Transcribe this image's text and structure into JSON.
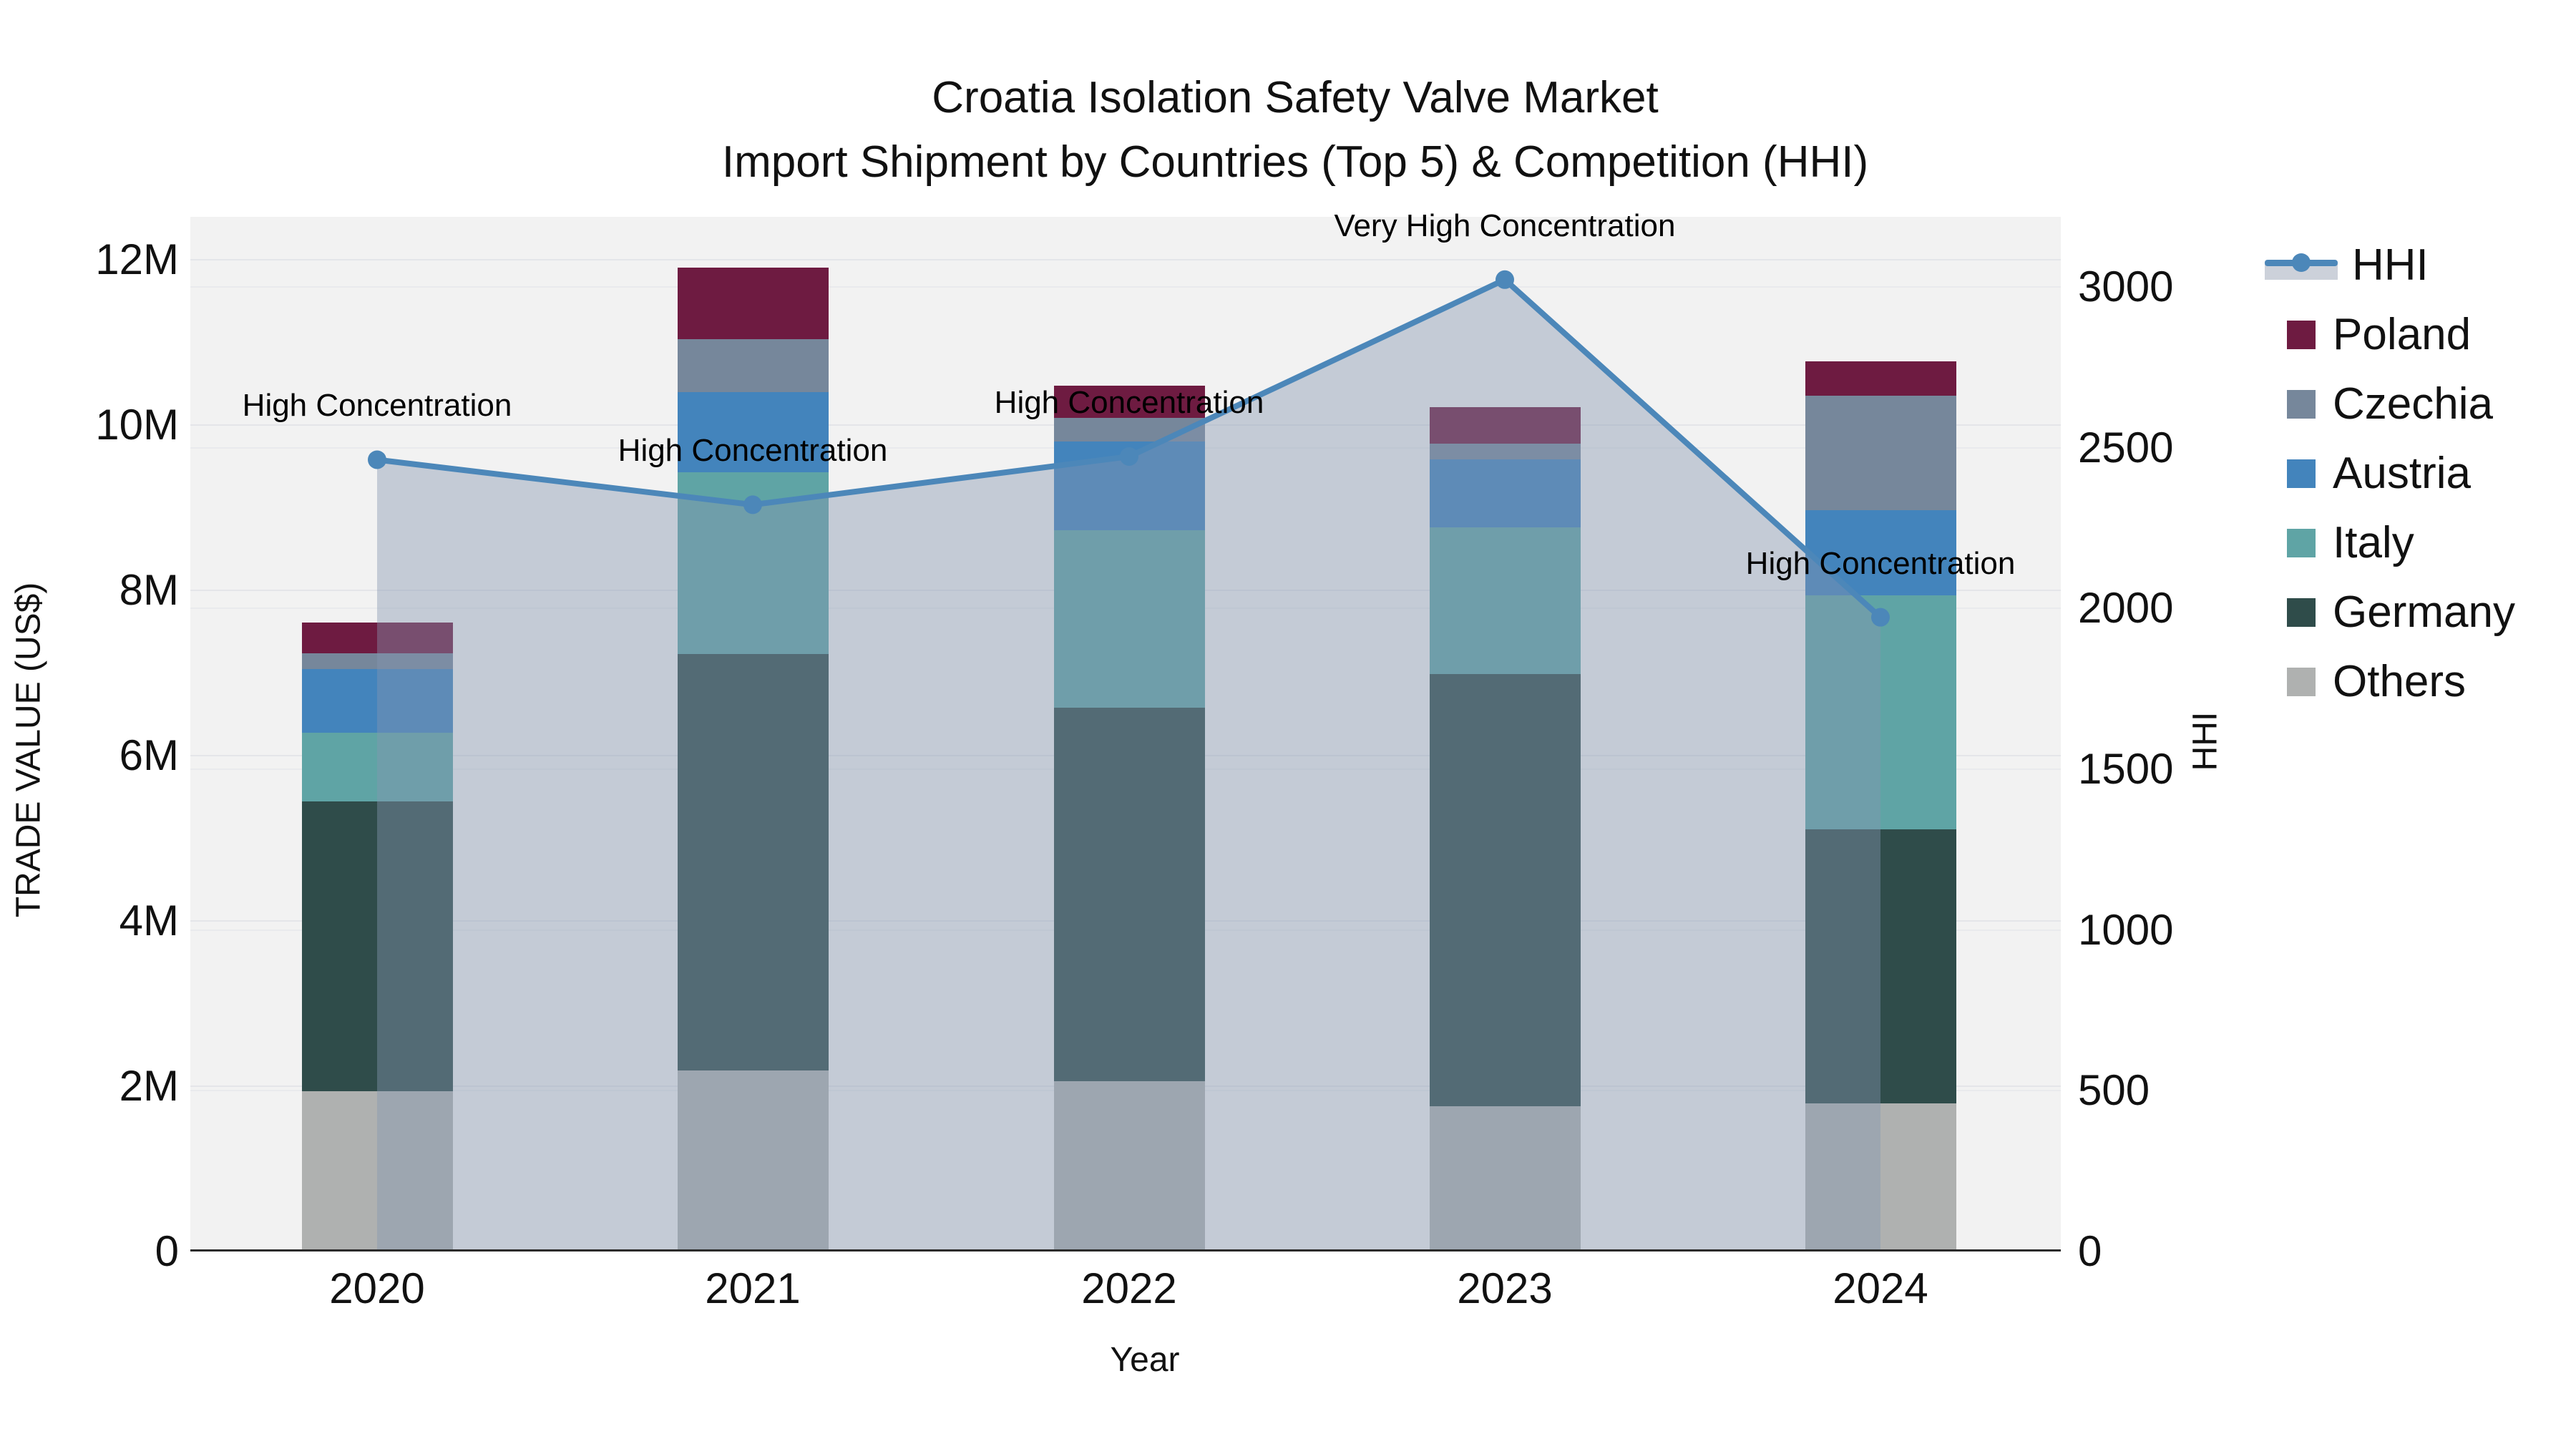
{
  "title": {
    "line1": "Croatia Isolation Safety Valve Market",
    "line2": "Import Shipment by Countries (Top 5) & Competition (HHI)"
  },
  "axes": {
    "x": {
      "title": "Year",
      "ticks": [
        "2020",
        "2021",
        "2022",
        "2023",
        "2024"
      ]
    },
    "y_left": {
      "title": "TRADE VALUE (US$)",
      "ticks": [
        "0",
        "2M",
        "4M",
        "6M",
        "8M",
        "10M",
        "12M"
      ]
    },
    "y_right": {
      "title": "HHI",
      "ticks": [
        "0",
        "500",
        "1000",
        "1500",
        "2000",
        "2500",
        "3000"
      ]
    }
  },
  "legend": {
    "items": [
      {
        "label": "HHI",
        "kind": "line",
        "color": "#4c87b9"
      },
      {
        "label": "Poland",
        "kind": "swatch",
        "color": "#6e1b41"
      },
      {
        "label": "Czechia",
        "kind": "swatch",
        "color": "#76879b"
      },
      {
        "label": "Austria",
        "kind": "swatch",
        "color": "#4384bc"
      },
      {
        "label": "Italy",
        "kind": "swatch",
        "color": "#5fa4a5"
      },
      {
        "label": "Germany",
        "kind": "swatch",
        "color": "#2f4c4a"
      },
      {
        "label": "Others",
        "kind": "swatch",
        "color": "#afb1b0"
      }
    ]
  },
  "chart_data": {
    "type": "combo: stacked-bar (left axis, US$ millions) + line-with-area (right axis, HHI)",
    "title": "Croatia Isolation Safety Valve Market — Import Shipment by Countries (Top 5) & Competition (HHI)",
    "xlabel": "Year",
    "ylabel_left": "TRADE VALUE (US$)",
    "ylabel_right": "HHI",
    "x": [
      "2020",
      "2021",
      "2022",
      "2023",
      "2024"
    ],
    "ylim_left_millions": [
      0,
      12.51
    ],
    "ylim_right": [
      0,
      3215
    ],
    "grid": "on",
    "legend_position": "right",
    "bar_stack_order_bottom_to_top": [
      "Others",
      "Germany",
      "Italy",
      "Austria",
      "Czechia",
      "Poland"
    ],
    "series": [
      {
        "name": "Others",
        "color": "#afb1b0",
        "values_millions": [
          1.93,
          2.18,
          2.05,
          1.75,
          1.78
        ]
      },
      {
        "name": "Germany",
        "color": "#2f4c4a",
        "values_millions": [
          3.51,
          5.04,
          4.52,
          5.23,
          3.32
        ]
      },
      {
        "name": "Italy",
        "color": "#5fa4a5",
        "values_millions": [
          0.83,
          2.2,
          2.15,
          1.77,
          2.83
        ]
      },
      {
        "name": "Austria",
        "color": "#4384bc",
        "values_millions": [
          0.77,
          0.97,
          1.07,
          0.83,
          1.03
        ]
      },
      {
        "name": "Czechia",
        "color": "#76879b",
        "values_millions": [
          0.19,
          0.64,
          0.29,
          0.19,
          1.39
        ]
      },
      {
        "name": "Poland",
        "color": "#6e1b41",
        "values_millions": [
          0.37,
          0.87,
          0.39,
          0.44,
          0.41
        ]
      }
    ],
    "bar_totals_millions": [
      7.6,
      11.9,
      10.47,
      10.21,
      10.76
    ],
    "hhi_line": {
      "name": "HHI",
      "color": "#4c87b9",
      "area_fill": "rgba(134,150,176,0.42)",
      "values": [
        2460,
        2320,
        2470,
        3020,
        1970
      ]
    },
    "annotations": [
      {
        "x": "2020",
        "text": "High Concentration"
      },
      {
        "x": "2021",
        "text": "High Concentration"
      },
      {
        "x": "2022",
        "text": "High Concentration"
      },
      {
        "x": "2023",
        "text": "Very High Concentration"
      },
      {
        "x": "2024",
        "text": "High Concentration"
      }
    ]
  }
}
